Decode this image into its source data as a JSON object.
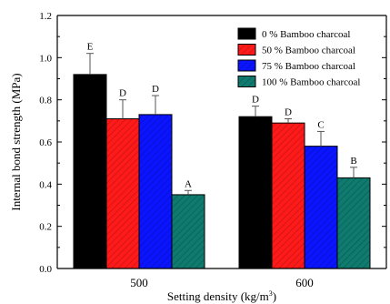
{
  "chart_data": {
    "type": "bar",
    "xlabel": "Setting density (kg/m",
    "xlabel_superscript": "3",
    "xlabel_suffix": ")",
    "ylabel": "Internal bond strength (MPa)",
    "ylim": [
      0.0,
      1.2
    ],
    "y_ticks": [
      "0.0",
      "0.2",
      "0.4",
      "0.6",
      "0.8",
      "1.0",
      "1.2"
    ],
    "categories": [
      "500",
      "600"
    ],
    "legend_position": "top-right",
    "series": [
      {
        "name": "0 % Bamboo charcoal",
        "color": "#000000",
        "pattern": "solid",
        "values": [
          0.92,
          0.72
        ],
        "errors": [
          0.1,
          0.05
        ],
        "labels": [
          "E",
          "D"
        ]
      },
      {
        "name": "50 % Bamboo charcoal",
        "color": "#ff1a1a",
        "pattern": "hatch",
        "values": [
          0.71,
          0.69
        ],
        "errors": [
          0.09,
          0.02
        ],
        "labels": [
          "D",
          "D"
        ]
      },
      {
        "name": "75 % Bamboo charcoal",
        "color": "#0a14ff",
        "pattern": "hatch",
        "values": [
          0.73,
          0.58
        ],
        "errors": [
          0.09,
          0.07
        ],
        "labels": [
          "D",
          "C"
        ]
      },
      {
        "name": "100 % Bamboo charcoal",
        "color": "#0f7a6e",
        "pattern": "hatch",
        "values": [
          0.35,
          0.43
        ],
        "errors": [
          0.02,
          0.05
        ],
        "labels": [
          "A",
          "B"
        ]
      }
    ]
  }
}
